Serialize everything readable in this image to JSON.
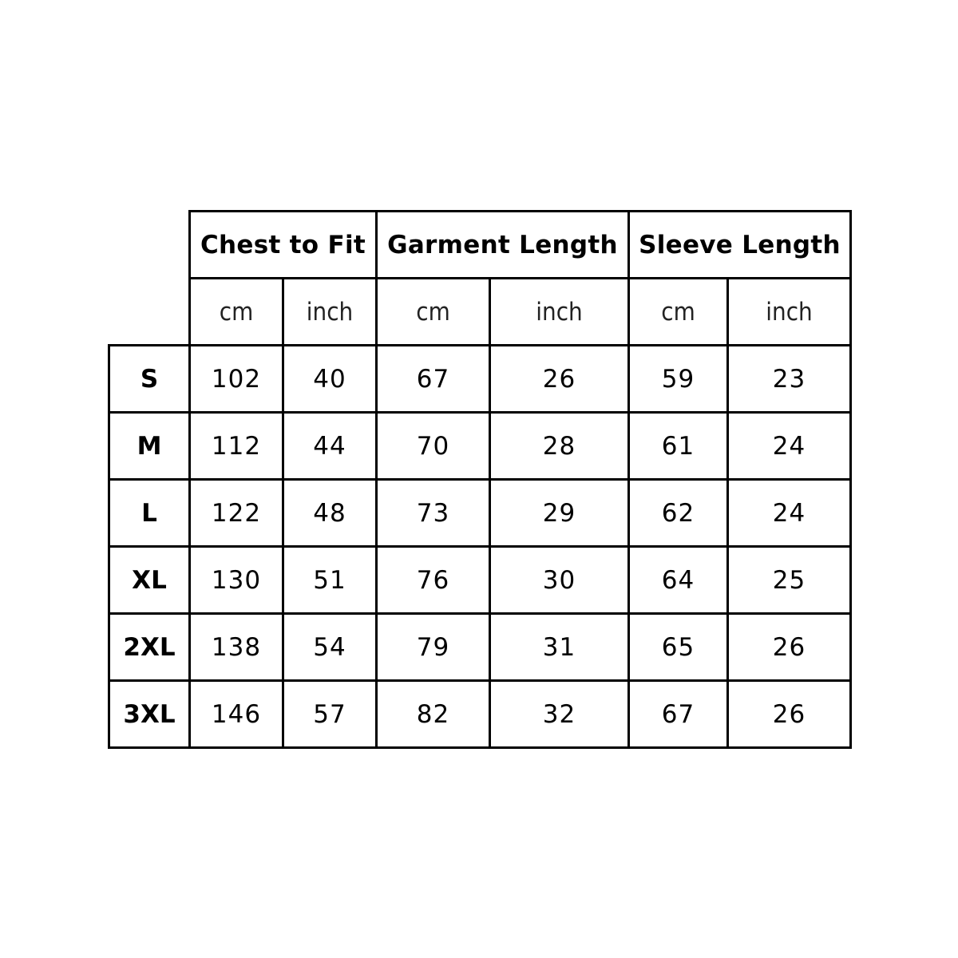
{
  "table": {
    "groups": [
      "Chest to Fit",
      "Garment Length",
      "Sleeve Length"
    ],
    "units": [
      "cm",
      "inch",
      "cm",
      "inch",
      "cm",
      "inch"
    ],
    "rows": [
      {
        "size": "S",
        "values": [
          "102",
          "40",
          "67",
          "26",
          "59",
          "23"
        ]
      },
      {
        "size": "M",
        "values": [
          "112",
          "44",
          "70",
          "28",
          "61",
          "24"
        ]
      },
      {
        "size": "L",
        "values": [
          "122",
          "48",
          "73",
          "29",
          "62",
          "24"
        ]
      },
      {
        "size": "XL",
        "values": [
          "130",
          "51",
          "76",
          "30",
          "64",
          "25"
        ]
      },
      {
        "size": "2XL",
        "values": [
          "138",
          "54",
          "79",
          "31",
          "65",
          "26"
        ]
      },
      {
        "size": "3XL",
        "values": [
          "146",
          "57",
          "82",
          "32",
          "67",
          "26"
        ]
      }
    ]
  }
}
